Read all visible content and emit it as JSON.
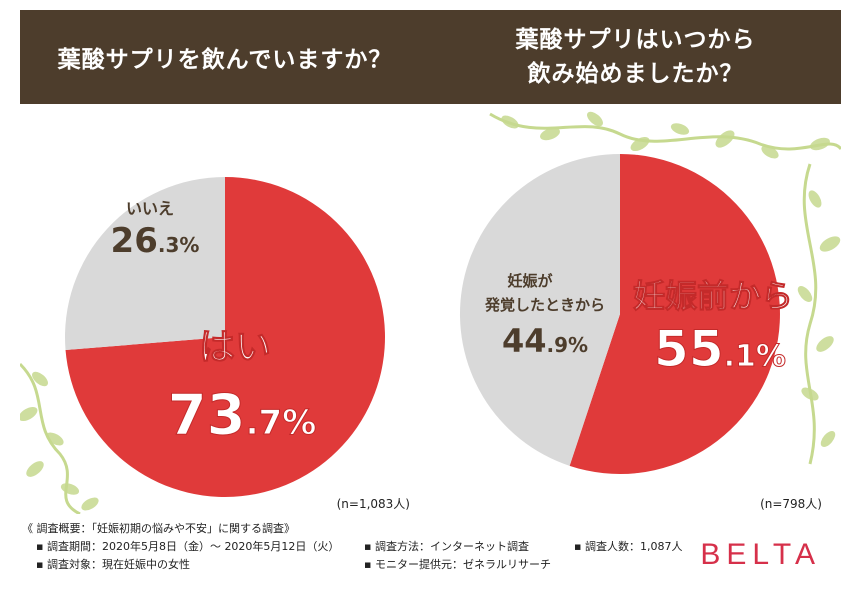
{
  "header": {
    "q1": "葉酸サプリを飲んでいますか？",
    "q2_line1": "葉酸サプリはいつから",
    "q2_line2": "飲み始めましたか？"
  },
  "chart_data": [
    {
      "type": "pie",
      "title": "葉酸サプリを飲んでいますか？",
      "slices": [
        {
          "label": "はい",
          "value": 73.7,
          "int": "73",
          "dec": ".7%",
          "color": "#e03a3a"
        },
        {
          "label": "いいえ",
          "value": 26.3,
          "int": "26",
          "dec": ".3%",
          "color": "#d9d9d9"
        }
      ],
      "n_label": "(n=1,083人)"
    },
    {
      "type": "pie",
      "title": "葉酸サプリはいつから飲み始めましたか？",
      "slices": [
        {
          "label": "妊娠前から",
          "value": 55.1,
          "int": "55",
          "dec": ".1%",
          "color": "#e03a3a"
        },
        {
          "label_lines": [
            "妊娠が",
            "発覚したときから"
          ],
          "label": "妊娠が発覚したときから",
          "value": 44.9,
          "int": "44",
          "dec": ".9%",
          "color": "#d9d9d9"
        }
      ],
      "n_label": "(n=798人)"
    }
  ],
  "footnote": {
    "title": "《 調査概要：「妊娠初期の悩みや不安」に関する調査》",
    "period": "▪ 調査期間：2020年5月8日（金）～ 2020年5月12日（火）",
    "method": "▪ 調査方法：インターネット調査",
    "count": "▪ 調査人数：1,087人",
    "target": "▪ 調査対象：現在妊娠中の女性",
    "provider": "▪ モニター提供元：ゼネラルリサーチ"
  },
  "brand": "BELTA",
  "colors": {
    "header_bg": "#4d3d2c",
    "red": "#e03a3a",
    "gray": "#d9d9d9",
    "leaf": "#c6d98f",
    "brand": "#d6304a"
  }
}
